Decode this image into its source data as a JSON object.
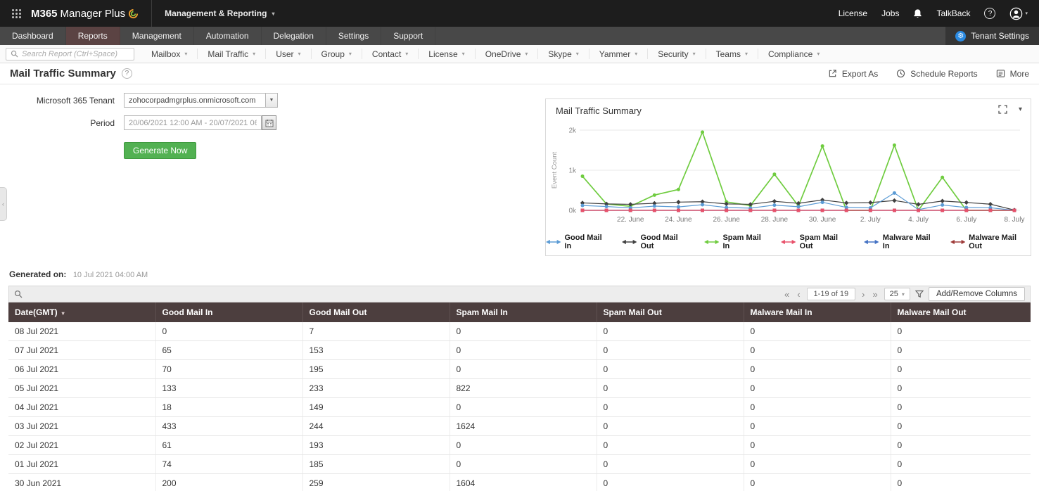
{
  "colors": {
    "topbar_bg": "#1d1d1d",
    "navbar_bg": "#484848",
    "active_tab": "#5b4343",
    "accent_green": "#52b152",
    "table_header": "#4c3e3e"
  },
  "topbar": {
    "logo_bold": "M365",
    "logo_rest": "Manager Plus",
    "module": "Management & Reporting",
    "license": "License",
    "jobs": "Jobs",
    "talkback": "TalkBack",
    "help": "?"
  },
  "navbar": {
    "tabs": [
      {
        "label": "Dashboard",
        "active": false
      },
      {
        "label": "Reports",
        "active": true
      },
      {
        "label": "Management",
        "active": false
      },
      {
        "label": "Automation",
        "active": false
      },
      {
        "label": "Delegation",
        "active": false
      },
      {
        "label": "Settings",
        "active": false
      },
      {
        "label": "Support",
        "active": false
      }
    ],
    "tenant_settings": "Tenant Settings"
  },
  "report_toolbar": {
    "search_placeholder": "Search Report (Ctrl+Space)",
    "menus": [
      "Mailbox",
      "Mail Traffic",
      "User",
      "Group",
      "Contact",
      "License",
      "OneDrive",
      "Skype",
      "Yammer",
      "Security",
      "Teams",
      "Compliance"
    ]
  },
  "page_header": {
    "title": "Mail Traffic Summary",
    "export_as": "Export As",
    "schedule_reports": "Schedule Reports",
    "more": "More"
  },
  "form": {
    "tenant_label": "Microsoft 365 Tenant",
    "tenant_value": "zohocorpadmgrplus.onmicrosoft.com",
    "period_label": "Period",
    "period_value": "20/06/2021 12:00 AM - 20/07/2021 06",
    "generate_button": "Generate Now"
  },
  "chart_card": {
    "title": "Mail Traffic Summary"
  },
  "chart_data": {
    "type": "line",
    "title": "Mail Traffic Summary",
    "ylabel": "Event Count",
    "ylim": [
      0,
      2000
    ],
    "yticks": [
      {
        "v": 0,
        "label": "0k"
      },
      {
        "v": 1000,
        "label": "1k"
      },
      {
        "v": 2000,
        "label": "2k"
      }
    ],
    "x_dates": [
      "20 Jun",
      "21 Jun",
      "22 Jun",
      "23 Jun",
      "24 Jun",
      "25 Jun",
      "26 Jun",
      "27 Jun",
      "28 Jun",
      "29 Jun",
      "30 Jun",
      "01 Jul",
      "02 Jul",
      "03 Jul",
      "04 Jul",
      "05 Jul",
      "06 Jul",
      "07 Jul",
      "08 Jul"
    ],
    "x_tick_indices": [
      2,
      4,
      6,
      8,
      10,
      12,
      14,
      16,
      18
    ],
    "x_tick_labels": [
      "22. June",
      "24. June",
      "26. June",
      "28. June",
      "30. June",
      "2. July",
      "4. July",
      "6. July",
      "8. July"
    ],
    "grid": true,
    "legend_position": "bottom",
    "series": [
      {
        "name": "Good Mail In",
        "color": "#5b9bd5",
        "marker": "circle",
        "values": [
          120,
          95,
          60,
          105,
          85,
          140,
          70,
          55,
          130,
          90,
          200,
          74,
          61,
          433,
          18,
          133,
          70,
          65,
          0
        ]
      },
      {
        "name": "Good Mail Out",
        "color": "#404040",
        "marker": "diamond",
        "values": [
          185,
          160,
          150,
          175,
          205,
          215,
          160,
          150,
          225,
          175,
          259,
          185,
          193,
          244,
          149,
          233,
          195,
          153,
          7
        ]
      },
      {
        "name": "Spam Mail In",
        "color": "#6fcc3f",
        "marker": "circle",
        "values": [
          850,
          160,
          100,
          380,
          520,
          1950,
          210,
          120,
          900,
          110,
          1604,
          0,
          0,
          1624,
          0,
          822,
          0,
          0,
          0
        ]
      },
      {
        "name": "Spam Mail Out",
        "color": "#e8506a",
        "marker": "square",
        "values": [
          0,
          0,
          0,
          0,
          0,
          0,
          0,
          0,
          0,
          0,
          0,
          0,
          0,
          0,
          0,
          0,
          0,
          0,
          0
        ]
      },
      {
        "name": "Malware Mail In",
        "color": "#4472c4",
        "marker": "circle",
        "values": [
          0,
          0,
          0,
          0,
          0,
          0,
          0,
          0,
          0,
          0,
          0,
          0,
          0,
          0,
          0,
          0,
          0,
          0,
          0
        ]
      },
      {
        "name": "Malware Mail Out",
        "color": "#9e3a38",
        "marker": "square",
        "values": [
          0,
          0,
          0,
          0,
          0,
          0,
          0,
          0,
          0,
          0,
          0,
          0,
          0,
          0,
          0,
          0,
          0,
          0,
          0
        ]
      }
    ]
  },
  "generated_on": {
    "label": "Generated on:",
    "value": "10 Jul 2021 04:00 AM"
  },
  "table": {
    "pagination": {
      "first": "«",
      "prev": "‹",
      "range": "1-19 of 19",
      "next": "›",
      "last": "»",
      "page_size": "25"
    },
    "add_remove_columns": "Add/Remove Columns",
    "columns": [
      "Date(GMT)",
      "Good Mail In",
      "Good Mail Out",
      "Spam Mail In",
      "Spam Mail Out",
      "Malware Mail In",
      "Malware Mail Out"
    ],
    "rows": [
      [
        "08 Jul 2021",
        "0",
        "7",
        "0",
        "0",
        "0",
        "0"
      ],
      [
        "07 Jul 2021",
        "65",
        "153",
        "0",
        "0",
        "0",
        "0"
      ],
      [
        "06 Jul 2021",
        "70",
        "195",
        "0",
        "0",
        "0",
        "0"
      ],
      [
        "05 Jul 2021",
        "133",
        "233",
        "822",
        "0",
        "0",
        "0"
      ],
      [
        "04 Jul 2021",
        "18",
        "149",
        "0",
        "0",
        "0",
        "0"
      ],
      [
        "03 Jul 2021",
        "433",
        "244",
        "1624",
        "0",
        "0",
        "0"
      ],
      [
        "02 Jul 2021",
        "61",
        "193",
        "0",
        "0",
        "0",
        "0"
      ],
      [
        "01 Jul 2021",
        "74",
        "185",
        "0",
        "0",
        "0",
        "0"
      ],
      [
        "30 Jun 2021",
        "200",
        "259",
        "1604",
        "0",
        "0",
        "0"
      ]
    ]
  }
}
